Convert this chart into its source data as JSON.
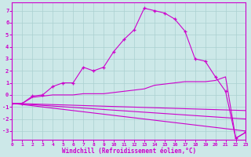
{
  "background_color": "#cce8e8",
  "grid_color": "#aad0d0",
  "line_color": "#cc00cc",
  "xlabel": "Windchill (Refroidissement éolien,°C)",
  "xlim": [
    0,
    23
  ],
  "ylim": [
    -3.7,
    7.7
  ],
  "xticks": [
    0,
    1,
    2,
    3,
    4,
    5,
    6,
    7,
    8,
    9,
    10,
    11,
    12,
    13,
    14,
    15,
    16,
    17,
    18,
    19,
    20,
    21,
    22,
    23
  ],
  "yticks": [
    -3,
    -2,
    -1,
    0,
    1,
    2,
    3,
    4,
    5,
    6,
    7
  ],
  "main_x": [
    0,
    1,
    2,
    3,
    4,
    5,
    6,
    7,
    8,
    9,
    10,
    11,
    12,
    13,
    14,
    15,
    16,
    17,
    18,
    19,
    20,
    21,
    22,
    23
  ],
  "main_y": [
    -0.7,
    -0.7,
    -0.1,
    0.0,
    0.7,
    1.0,
    1.0,
    2.3,
    2.0,
    2.3,
    3.6,
    4.6,
    5.4,
    7.2,
    7.0,
    6.8,
    6.3,
    5.3,
    3.0,
    2.8,
    1.5,
    0.3,
    -3.6,
    -3.1
  ],
  "line2_x": [
    0,
    1,
    2,
    3,
    4,
    5,
    6,
    7,
    8,
    9,
    10,
    11,
    12,
    13,
    14,
    15,
    16,
    17,
    18,
    19,
    20,
    21,
    22,
    23
  ],
  "line2_y": [
    -0.7,
    -0.7,
    -0.2,
    -0.1,
    0.0,
    0.0,
    0.0,
    0.1,
    0.1,
    0.1,
    0.2,
    0.3,
    0.4,
    0.5,
    0.8,
    0.9,
    1.0,
    1.1,
    1.1,
    1.1,
    1.2,
    1.5,
    -3.6,
    -3.1
  ],
  "line3_x": [
    0,
    23
  ],
  "line3_y": [
    -0.7,
    -1.3
  ],
  "line4_x": [
    0,
    23
  ],
  "line4_y": [
    -0.7,
    -2.0
  ],
  "line5_x": [
    0,
    23
  ],
  "line5_y": [
    -0.7,
    -3.0
  ]
}
